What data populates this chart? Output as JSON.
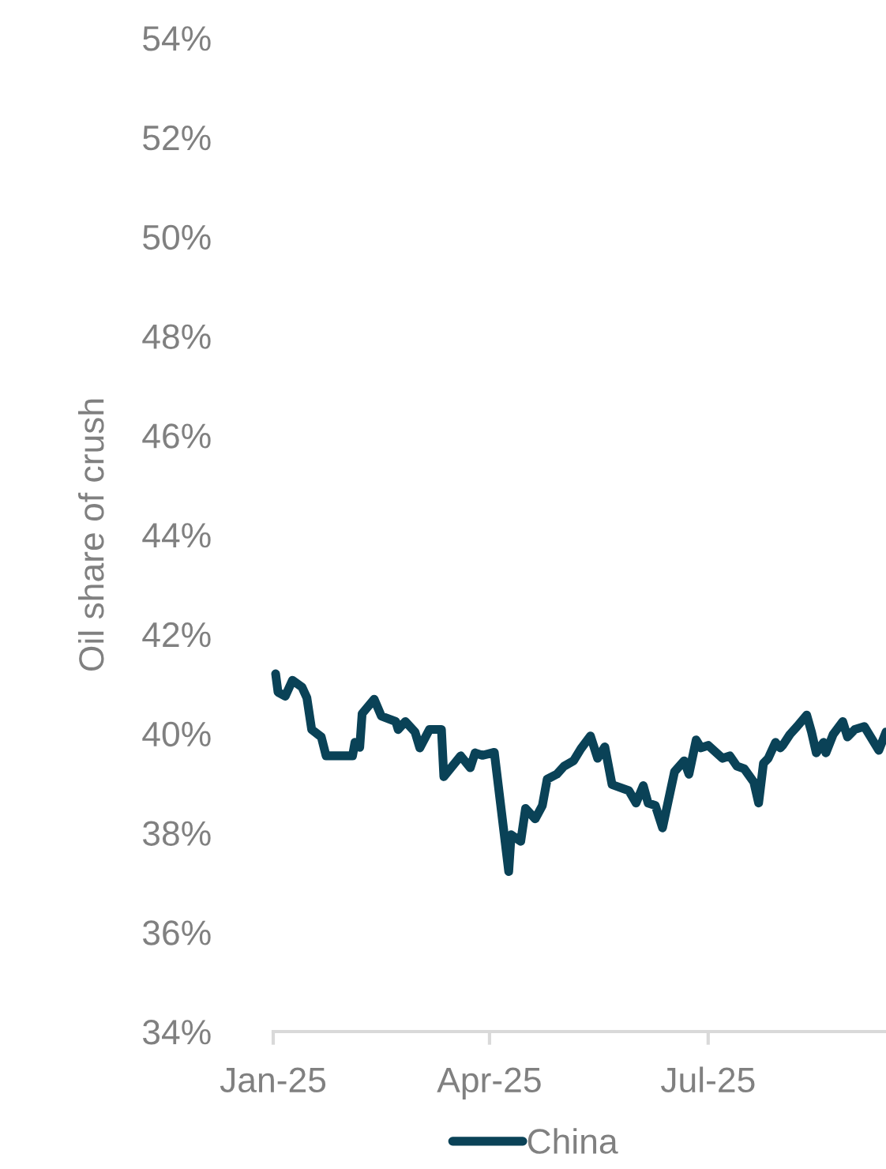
{
  "chart_data": {
    "type": "line",
    "ylabel": "Oil share of crush",
    "x": [
      "2025-01-02",
      "2025-01-03",
      "2025-01-06",
      "2025-01-09",
      "2025-01-13",
      "2025-01-15",
      "2025-01-17",
      "2025-01-21",
      "2025-01-23",
      "2025-02-03",
      "2025-02-04",
      "2025-02-06",
      "2025-02-07",
      "2025-02-12",
      "2025-02-15",
      "2025-02-21",
      "2025-02-22",
      "2025-02-25",
      "2025-03-01",
      "2025-03-03",
      "2025-03-07",
      "2025-03-12",
      "2025-03-13",
      "2025-03-20",
      "2025-03-24",
      "2025-03-26",
      "2025-03-29",
      "2025-04-03",
      "2025-04-09",
      "2025-04-10",
      "2025-04-14",
      "2025-04-16",
      "2025-04-20",
      "2025-04-23",
      "2025-04-25",
      "2025-04-29",
      "2025-05-02",
      "2025-05-06",
      "2025-05-09",
      "2025-05-13",
      "2025-05-16",
      "2025-05-19",
      "2025-05-22",
      "2025-05-29",
      "2025-06-01",
      "2025-06-04",
      "2025-06-06",
      "2025-06-09",
      "2025-06-12",
      "2025-06-17",
      "2025-06-21",
      "2025-06-23",
      "2025-06-26",
      "2025-06-28",
      "2025-07-01",
      "2025-07-07",
      "2025-07-10",
      "2025-07-13",
      "2025-07-16",
      "2025-07-20",
      "2025-07-22",
      "2025-07-24",
      "2025-07-26",
      "2025-07-29",
      "2025-07-31",
      "2025-08-01",
      "2025-08-04",
      "2025-08-07",
      "2025-08-11",
      "2025-08-13",
      "2025-08-15",
      "2025-08-18",
      "2025-08-19",
      "2025-08-22",
      "2025-08-26",
      "2025-08-28",
      "2025-08-31",
      "2025-09-04",
      "2025-09-06",
      "2025-09-10",
      "2025-09-13"
    ],
    "series": [
      {
        "name": "China",
        "color": "#0a4257",
        "values": [
          41.2,
          40.83,
          40.75,
          41.07,
          40.93,
          40.72,
          40.08,
          39.93,
          39.55,
          39.55,
          39.82,
          39.72,
          40.4,
          40.69,
          40.35,
          40.24,
          40.08,
          40.24,
          40.03,
          39.71,
          40.08,
          40.08,
          39.13,
          39.55,
          39.31,
          39.61,
          39.56,
          39.62,
          37.22,
          37.96,
          37.83,
          38.49,
          38.28,
          38.55,
          39.08,
          39.18,
          39.34,
          39.45,
          39.69,
          39.95,
          39.5,
          39.73,
          38.97,
          38.85,
          38.6,
          38.95,
          38.6,
          38.55,
          38.1,
          39.23,
          39.45,
          39.18,
          39.87,
          39.71,
          39.76,
          39.5,
          39.55,
          39.34,
          39.29,
          39.02,
          38.6,
          39.4,
          39.5,
          39.82,
          39.71,
          39.76,
          39.98,
          40.14,
          40.37,
          40.03,
          39.61,
          39.82,
          39.61,
          39.98,
          40.24,
          39.93,
          40.08,
          40.14,
          39.98,
          39.66,
          40.03
        ]
      }
    ],
    "xlim": [
      "2025-01-01",
      "2025-09-13"
    ],
    "xticks": [
      {
        "value": "2025-01-01",
        "label": "Jan-25"
      },
      {
        "value": "2025-04-01",
        "label": "Apr-25"
      },
      {
        "value": "2025-07-01",
        "label": "Jul-25"
      }
    ],
    "ylim": [
      34,
      54
    ],
    "yticks": [
      {
        "value": 34,
        "label": "34%"
      },
      {
        "value": 36,
        "label": "36%"
      },
      {
        "value": 38,
        "label": "38%"
      },
      {
        "value": 40,
        "label": "40%"
      },
      {
        "value": 42,
        "label": "42%"
      },
      {
        "value": 44,
        "label": "44%"
      },
      {
        "value": 46,
        "label": "46%"
      },
      {
        "value": 48,
        "label": "48%"
      },
      {
        "value": 50,
        "label": "50%"
      },
      {
        "value": 52,
        "label": "52%"
      },
      {
        "value": 54,
        "label": "54%"
      }
    ],
    "grid": false,
    "legend": "bottom",
    "marker": "none",
    "line_style": "solid"
  }
}
